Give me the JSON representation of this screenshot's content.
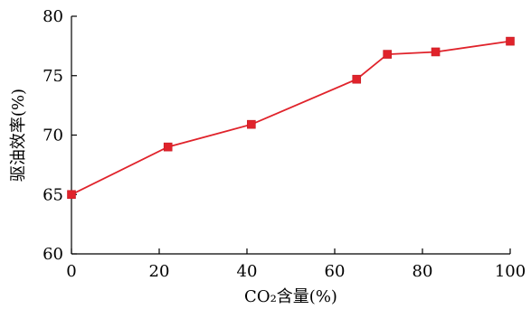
{
  "chart_data": {
    "type": "line",
    "title": "",
    "xlabel": "CO₂含量(%)",
    "ylabel": "驱油效率(%)",
    "xlim": [
      0,
      100
    ],
    "ylim": [
      60,
      80
    ],
    "x_ticks": [
      "0",
      "20",
      "40",
      "60",
      "80",
      "100"
    ],
    "y_ticks": [
      "60",
      "65",
      "70",
      "75",
      "80"
    ],
    "grid": false,
    "legend": "none",
    "series": [
      {
        "x": [
          0,
          22,
          41,
          65,
          72,
          83,
          100
        ],
        "y": [
          65.0,
          69.0,
          70.9,
          74.7,
          76.8,
          77.0,
          77.9
        ],
        "color": "#e0232b",
        "marker": "square"
      }
    ]
  }
}
